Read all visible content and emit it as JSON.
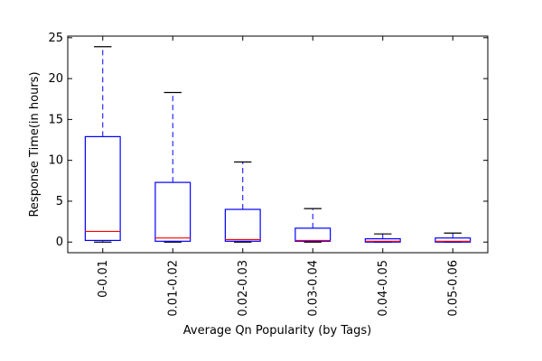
{
  "chart_data": {
    "type": "boxplot",
    "xlabel": "Average Qn Popularity (by Tags)",
    "ylabel": "Response Time(in hours)",
    "ylim": [
      -1.3,
      25.2
    ],
    "yticks": [
      0,
      5,
      10,
      15,
      20,
      25
    ],
    "categories": [
      "0-0.01",
      "0.01-0.02",
      "0.02-0.03",
      "0.03-0.04",
      "0.04-0.05",
      "0.05-0.06"
    ],
    "boxes": [
      {
        "category": "0-0.01",
        "whisker_low": 0.0,
        "q1": 0.2,
        "median": 1.3,
        "q3": 12.9,
        "whisker_high": 23.9
      },
      {
        "category": "0.01-0.02",
        "whisker_low": 0.0,
        "q1": 0.1,
        "median": 0.5,
        "q3": 7.3,
        "whisker_high": 18.3
      },
      {
        "category": "0.02-0.03",
        "whisker_low": 0.0,
        "q1": 0.1,
        "median": 0.3,
        "q3": 4.0,
        "whisker_high": 9.8
      },
      {
        "category": "0.03-0.04",
        "whisker_low": 0.0,
        "q1": 0.1,
        "median": 0.2,
        "q3": 1.7,
        "whisker_high": 4.1
      },
      {
        "category": "0.04-0.05",
        "whisker_low": 0.0,
        "q1": 0.0,
        "median": 0.1,
        "q3": 0.4,
        "whisker_high": 1.0
      },
      {
        "category": "0.05-0.06",
        "whisker_low": 0.0,
        "q1": 0.0,
        "median": 0.1,
        "q3": 0.5,
        "whisker_high": 1.1
      }
    ],
    "colors": {
      "box": "#0000ff",
      "median": "#ff0000",
      "cap": "#000000",
      "whisker": "#0000ff"
    },
    "grid": false,
    "legend": "none"
  }
}
